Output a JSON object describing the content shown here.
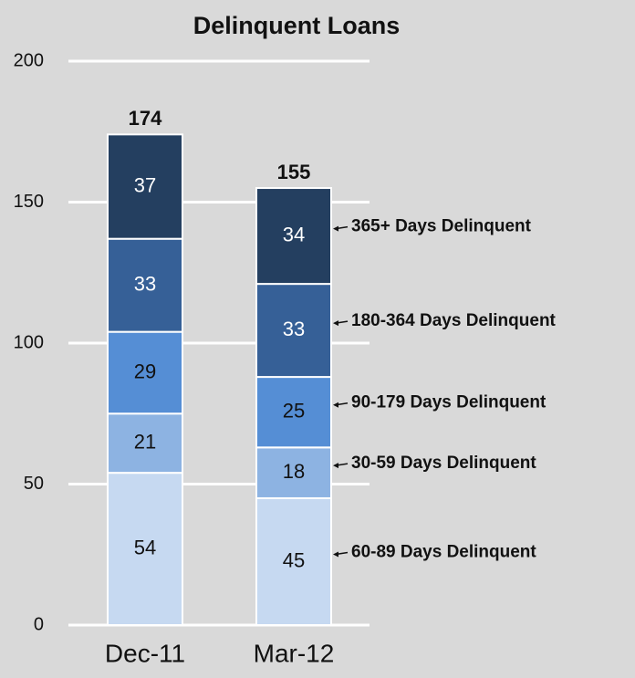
{
  "chart_data": {
    "type": "stacked_bar",
    "title": "Delinquent Loans",
    "categories": [
      "Dec-11",
      "Mar-12"
    ],
    "series": [
      {
        "name": "60-89 Days Delinquent",
        "color": "#c6d9f1",
        "values": [
          54,
          45
        ]
      },
      {
        "name": "30-59 Days Delinquent",
        "color": "#8db3e2",
        "values": [
          21,
          18
        ]
      },
      {
        "name": "90-179 Days Delinquent",
        "color": "#558ed5",
        "values": [
          29,
          25
        ]
      },
      {
        "name": "180-364 Days Delinquent",
        "color": "#366097",
        "values": [
          33,
          33
        ]
      },
      {
        "name": "365+ Days Delinquent",
        "color": "#243f60",
        "values": [
          37,
          34
        ]
      }
    ],
    "totals": [
      174,
      155
    ],
    "ylim": [
      0,
      200
    ],
    "yticks": [
      0,
      50,
      100,
      150,
      200
    ],
    "grid": true
  }
}
